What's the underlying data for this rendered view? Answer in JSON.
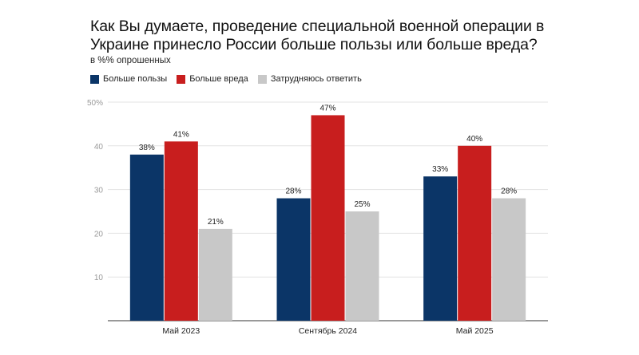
{
  "title": "Как Вы думаете, проведение специальной военной операции в Украине принесло России больше пользы или больше вреда?",
  "subtitle": "в %% опрошенных",
  "chart_data": {
    "type": "bar",
    "categories": [
      "Май 2023",
      "Сентябрь 2024",
      "Май 2025"
    ],
    "series": [
      {
        "name": "Больше пользы",
        "color": "#0b3567",
        "values": [
          38,
          28,
          33
        ]
      },
      {
        "name": "Больше вреда",
        "color": "#c81e1e",
        "values": [
          41,
          47,
          40
        ]
      },
      {
        "name": "Затрудняюсь ответить",
        "color": "#c8c8c8",
        "values": [
          21,
          25,
          28
        ]
      }
    ],
    "value_suffix": "%",
    "ylim": [
      0,
      50
    ],
    "yticks": [
      {
        "v": 10,
        "label": "10"
      },
      {
        "v": 20,
        "label": "20"
      },
      {
        "v": 30,
        "label": "30"
      },
      {
        "v": 40,
        "label": "40"
      },
      {
        "v": 50,
        "label": "50%"
      }
    ],
    "grid": true,
    "legend": "top-left"
  }
}
